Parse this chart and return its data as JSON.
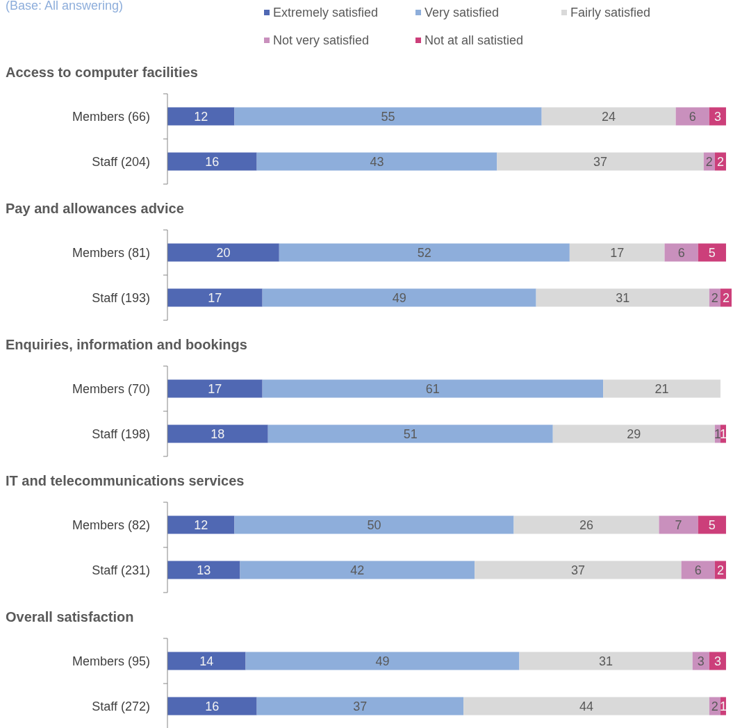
{
  "chart_data": [
    {
      "type": "bar",
      "orientation": "horizontal",
      "stacked": true,
      "title": "Access to computer facilities",
      "annotations": [
        "(Base: All answering)"
      ],
      "legend": "top",
      "data_labels": true,
      "tick_labels": "y",
      "xlim": [
        0,
        101
      ],
      "categories": [
        "Members (66)",
        "Staff (204)"
      ],
      "series": [
        {
          "name": "Extremely satisfied",
          "color": "#5068b3",
          "values": [
            12,
            16
          ]
        },
        {
          "name": "Very satisfied",
          "color": "#8eaedb",
          "values": [
            55,
            43
          ]
        },
        {
          "name": "Fairly satisfied",
          "color": "#d9d9d9",
          "values": [
            24,
            37
          ]
        },
        {
          "name": "Not very satisfied",
          "color": "#c990bd",
          "values": [
            6,
            2
          ]
        },
        {
          "name": "Not at all satistied",
          "color": "#cc3f7a",
          "values": [
            3,
            2
          ]
        }
      ]
    },
    {
      "type": "bar",
      "orientation": "horizontal",
      "stacked": true,
      "title": "Pay and allowances advice",
      "data_labels": true,
      "tick_labels": "y",
      "xlim": [
        0,
        101
      ],
      "categories": [
        "Members (81)",
        "Staff (193)"
      ],
      "series": [
        {
          "color": "#5068b3",
          "values": [
            20,
            17
          ]
        },
        {
          "color": "#8eaedb",
          "values": [
            52,
            49
          ]
        },
        {
          "color": "#d9d9d9",
          "values": [
            17,
            31
          ]
        },
        {
          "color": "#c990bd",
          "values": [
            6,
            2
          ]
        },
        {
          "color": "#cc3f7a",
          "values": [
            5,
            2
          ]
        }
      ]
    },
    {
      "type": "bar",
      "orientation": "horizontal",
      "stacked": true,
      "title": "Enquiries, information and bookings",
      "data_labels": true,
      "tick_labels": "y",
      "xlim": [
        0,
        101
      ],
      "categories": [
        "Members (70)",
        "Staff (198)"
      ],
      "series": [
        {
          "color": "#5068b3",
          "values": [
            17,
            18
          ]
        },
        {
          "color": "#8eaedb",
          "values": [
            61,
            51
          ]
        },
        {
          "color": "#d9d9d9",
          "values": [
            21,
            29
          ]
        },
        {
          "color": "#c990bd",
          "values": [
            null,
            1
          ]
        },
        {
          "color": "#cc3f7a",
          "values": [
            null,
            1
          ]
        }
      ]
    },
    {
      "type": "bar",
      "orientation": "horizontal",
      "stacked": true,
      "title": "IT and telecommunications services",
      "data_labels": true,
      "tick_labels": "y",
      "xlim": [
        0,
        101
      ],
      "categories": [
        "Members (82)",
        "Staff (231)"
      ],
      "series": [
        {
          "color": "#5068b3",
          "values": [
            12,
            13
          ]
        },
        {
          "color": "#8eaedb",
          "values": [
            50,
            42
          ]
        },
        {
          "color": "#d9d9d9",
          "values": [
            26,
            37
          ]
        },
        {
          "color": "#c990bd",
          "values": [
            7,
            6
          ]
        },
        {
          "color": "#cc3f7a",
          "values": [
            5,
            2
          ]
        }
      ]
    },
    {
      "type": "bar",
      "orientation": "horizontal",
      "stacked": true,
      "title": "Overall satisfaction",
      "data_labels": true,
      "tick_labels": "y",
      "xlim": [
        0,
        101
      ],
      "categories": [
        "Members (95)",
        "Staff (272)"
      ],
      "series": [
        {
          "color": "#5068b3",
          "values": [
            14,
            16
          ]
        },
        {
          "color": "#8eaedb",
          "values": [
            49,
            37
          ]
        },
        {
          "color": "#d9d9d9",
          "values": [
            31,
            44
          ]
        },
        {
          "color": "#c990bd",
          "values": [
            3,
            2
          ]
        },
        {
          "color": "#cc3f7a",
          "values": [
            3,
            1
          ]
        }
      ]
    }
  ]
}
